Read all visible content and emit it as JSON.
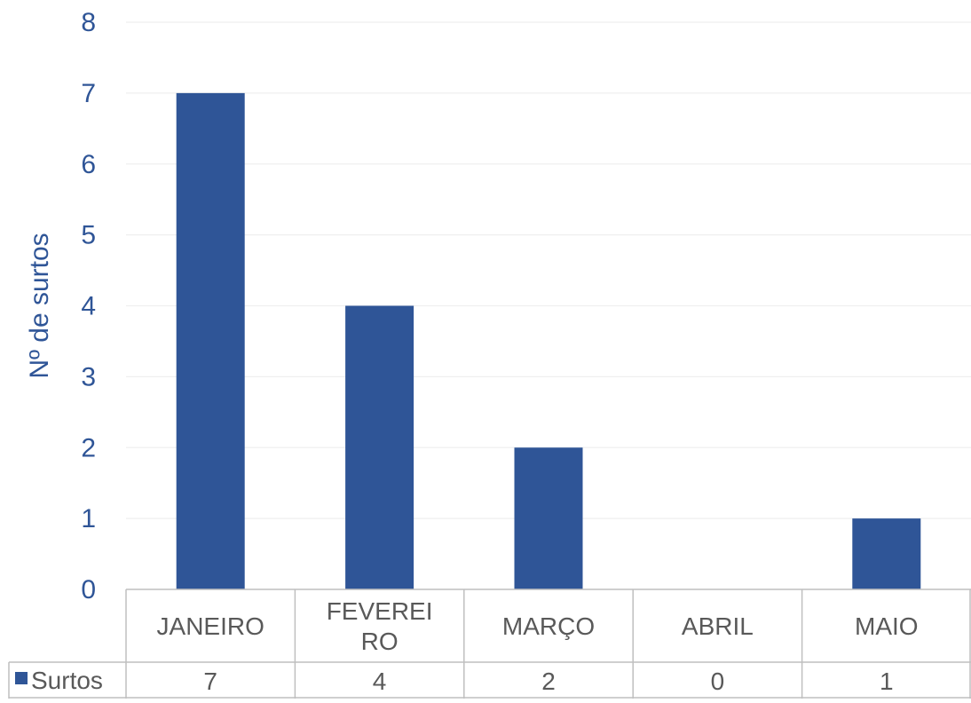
{
  "chart_data": {
    "type": "bar",
    "title": "",
    "xlabel": "",
    "ylabel": "Nº de surtos",
    "categories": [
      "JANEIRO",
      "FEVEREIRO",
      "MARÇO",
      "ABRIL",
      "MAIO"
    ],
    "category_display_lines": [
      [
        "JANEIRO"
      ],
      [
        "FEVEREI",
        "RO"
      ],
      [
        "MARÇO"
      ],
      [
        "ABRIL"
      ],
      [
        "MAIO"
      ]
    ],
    "series": [
      {
        "name": "Surtos",
        "values": [
          7,
          4,
          2,
          0,
          1
        ]
      }
    ],
    "ylim": [
      0,
      8
    ],
    "yticks": [
      0,
      1,
      2,
      3,
      4,
      5,
      6,
      7,
      8
    ],
    "grid": true,
    "legend": "data-table",
    "data_table": true,
    "colors": {
      "bar": "#2f5597",
      "axis_text": "#2f5597",
      "table_text": "#595959",
      "gridline": "#efefef",
      "table_border": "#bfbfbf"
    }
  }
}
